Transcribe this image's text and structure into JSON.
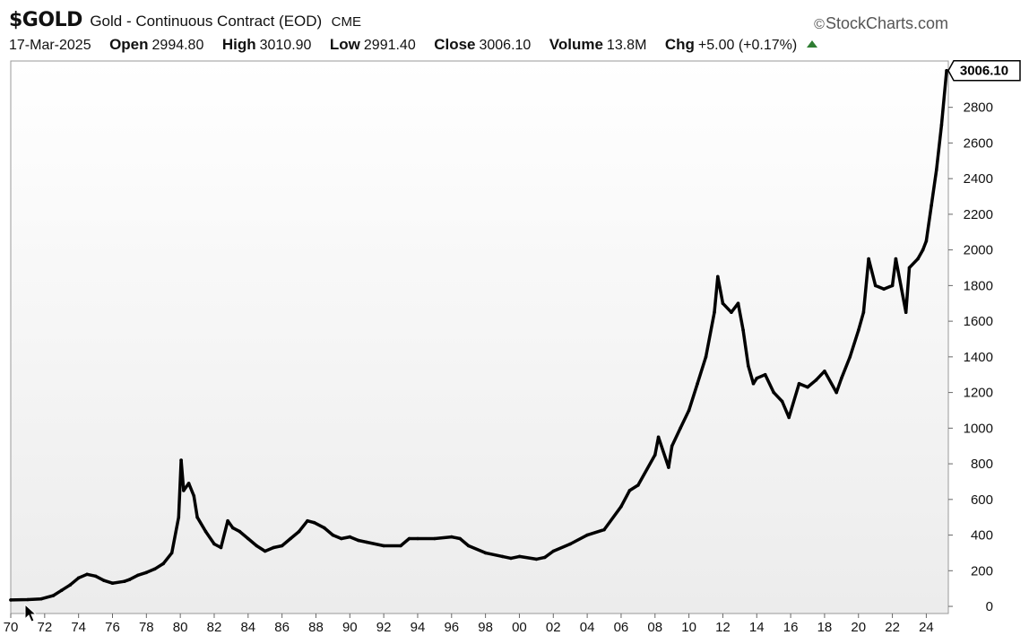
{
  "header": {
    "symbol": "$GOLD",
    "description": "Gold - Continuous Contract (EOD)",
    "exchange": "CME",
    "brand": "StockCharts.com",
    "date": "17-Mar-2025",
    "quote": [
      {
        "key": "Open",
        "value": "2994.80"
      },
      {
        "key": "High",
        "value": "3010.90"
      },
      {
        "key": "Low",
        "value": "2991.40"
      },
      {
        "key": "Close",
        "value": "3006.10"
      },
      {
        "key": "Volume",
        "value": "13.8M"
      },
      {
        "key": "Chg",
        "value": "+5.00 (+0.17%)"
      }
    ],
    "change_direction_icon": "up-triangle-icon",
    "change_color": "#2e7d32"
  },
  "chart_data": {
    "type": "line",
    "title": "",
    "xlabel": "",
    "ylabel": "",
    "grid": false,
    "y_axis_side": "right",
    "xlim": [
      1970,
      2025.3
    ],
    "ylim": [
      -40,
      3060
    ],
    "x_ticks": [
      "70",
      "72",
      "74",
      "76",
      "78",
      "80",
      "82",
      "84",
      "86",
      "88",
      "90",
      "92",
      "94",
      "96",
      "98",
      "00",
      "02",
      "04",
      "06",
      "08",
      "10",
      "12",
      "14",
      "16",
      "18",
      "20",
      "22",
      "24"
    ],
    "y_ticks": [
      0,
      200,
      400,
      600,
      800,
      1000,
      1200,
      1400,
      1600,
      1800,
      2000,
      2200,
      2400,
      2600,
      2800
    ],
    "last_value_label": "3006.10",
    "colors": {
      "line": "#000000",
      "background_top": "#ffffff",
      "background_bottom": "#ececec"
    },
    "series": [
      {
        "x": [
          1970.0,
          1971.0,
          1971.8,
          1972.5,
          1973.0,
          1973.5,
          1974.0,
          1974.5,
          1975.0,
          1975.5,
          1976.0,
          1976.7,
          1977.0,
          1977.5,
          1978.0,
          1978.5,
          1979.0,
          1979.5,
          1979.9,
          1980.05,
          1980.2,
          1980.5,
          1980.8,
          1981.0,
          1981.5,
          1982.0,
          1982.4,
          1982.8,
          1983.1,
          1983.5,
          1984.0,
          1984.5,
          1985.0,
          1985.5,
          1986.0,
          1986.5,
          1987.0,
          1987.5,
          1987.9,
          1988.5,
          1989.0,
          1989.5,
          1990.0,
          1990.5,
          1991.0,
          1992.0,
          1993.0,
          1993.5,
          1994.0,
          1995.0,
          1996.0,
          1996.5,
          1997.0,
          1998.0,
          1999.0,
          1999.5,
          2000.0,
          2001.0,
          2001.5,
          2002.0,
          2003.0,
          2004.0,
          2005.0,
          2006.0,
          2006.5,
          2007.0,
          2008.0,
          2008.2,
          2008.8,
          2009.0,
          2009.5,
          2010.0,
          2010.5,
          2011.0,
          2011.5,
          2011.7,
          2012.0,
          2012.5,
          2012.9,
          2013.2,
          2013.5,
          2013.8,
          2014.0,
          2014.5,
          2015.0,
          2015.5,
          2015.9,
          2016.5,
          2017.0,
          2017.5,
          2018.0,
          2018.7,
          2019.0,
          2019.5,
          2020.0,
          2020.3,
          2020.6,
          2021.0,
          2021.5,
          2022.0,
          2022.2,
          2022.8,
          2023.0,
          2023.5,
          2023.8,
          2024.0,
          2024.3,
          2024.6,
          2024.9,
          2025.2
        ],
        "y": [
          36,
          38,
          42,
          60,
          90,
          120,
          160,
          180,
          170,
          145,
          130,
          140,
          150,
          175,
          190,
          210,
          240,
          300,
          500,
          820,
          650,
          690,
          620,
          500,
          420,
          350,
          330,
          480,
          440,
          420,
          380,
          340,
          310,
          330,
          340,
          380,
          420,
          480,
          470,
          440,
          400,
          380,
          390,
          370,
          360,
          340,
          340,
          380,
          380,
          380,
          390,
          380,
          340,
          300,
          280,
          270,
          280,
          265,
          275,
          310,
          350,
          400,
          430,
          560,
          650,
          680,
          850,
          950,
          780,
          900,
          1000,
          1100,
          1250,
          1400,
          1650,
          1850,
          1700,
          1650,
          1700,
          1550,
          1350,
          1250,
          1280,
          1300,
          1200,
          1150,
          1060,
          1250,
          1230,
          1270,
          1320,
          1200,
          1280,
          1400,
          1550,
          1650,
          1950,
          1800,
          1780,
          1800,
          1950,
          1650,
          1900,
          1950,
          2000,
          2050,
          2250,
          2450,
          2700,
          3006
        ]
      }
    ]
  }
}
